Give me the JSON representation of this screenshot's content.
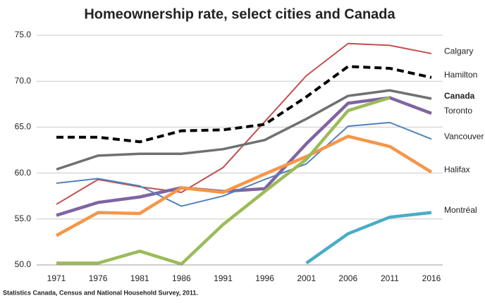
{
  "chart_data": {
    "type": "line",
    "title": "Homeownership rate, select cities and Canada",
    "source": "Statistics Canada, Census and National Household Survey, 2011.",
    "categories": [
      "1971",
      "1976",
      "1981",
      "1986",
      "1991",
      "1996",
      "2001",
      "2006",
      "2011",
      "2016"
    ],
    "ylim": [
      50,
      75
    ],
    "yticks": [
      {
        "value": 50,
        "label": "50.0"
      },
      {
        "value": 55,
        "label": "55.0"
      },
      {
        "value": 60,
        "label": "60.0"
      },
      {
        "value": 65,
        "label": "65.0"
      },
      {
        "value": 70,
        "label": "70.0"
      },
      {
        "value": 75,
        "label": "75.0"
      }
    ],
    "grid": true,
    "series": [
      {
        "name": "Calgary",
        "color": "#c0504d",
        "width": 2,
        "values": [
          56.6,
          59.3,
          58.5,
          57.9,
          60.6,
          65.6,
          70.6,
          74.1,
          73.9,
          73.0
        ]
      },
      {
        "name": "Hamilton",
        "color": "#000000",
        "width": 4,
        "dash": true,
        "values": [
          63.9,
          63.9,
          63.4,
          64.6,
          64.7,
          65.3,
          68.3,
          71.6,
          71.4,
          70.4
        ]
      },
      {
        "name": "Canada",
        "color": "#707070",
        "width": 3.5,
        "bold": true,
        "values": [
          60.4,
          61.9,
          62.1,
          62.1,
          62.6,
          63.6,
          65.9,
          68.4,
          69.0,
          68.1
        ]
      },
      {
        "name": "Toronto",
        "color": "#8064a2",
        "width": 4.5,
        "values": [
          55.4,
          56.8,
          57.4,
          58.4,
          58.0,
          58.3,
          63.2,
          67.6,
          68.2,
          66.5
        ]
      },
      {
        "name": "Vancouver",
        "color": "#4f81bd",
        "width": 2,
        "values": [
          58.9,
          59.4,
          58.6,
          56.4,
          57.5,
          59.3,
          61.0,
          65.1,
          65.5,
          63.7
        ]
      },
      {
        "name": "Halifax",
        "color": "#f79646",
        "width": 4.5,
        "values": [
          53.2,
          55.7,
          55.6,
          58.4,
          57.9,
          59.9,
          61.8,
          64.0,
          62.9,
          60.1
        ]
      },
      {
        "name": "Montréal",
        "color": "#4bacc6",
        "width": 4.5,
        "values": [
          null,
          null,
          null,
          null,
          null,
          null,
          50.2,
          53.4,
          55.2,
          55.7
        ]
      },
      {
        "color": "#9bbb59",
        "width": 4.5,
        "values": [
          50.2,
          50.2,
          51.5,
          50.1,
          54.4,
          58.0,
          61.5,
          66.8,
          68.2,
          null
        ]
      }
    ]
  }
}
